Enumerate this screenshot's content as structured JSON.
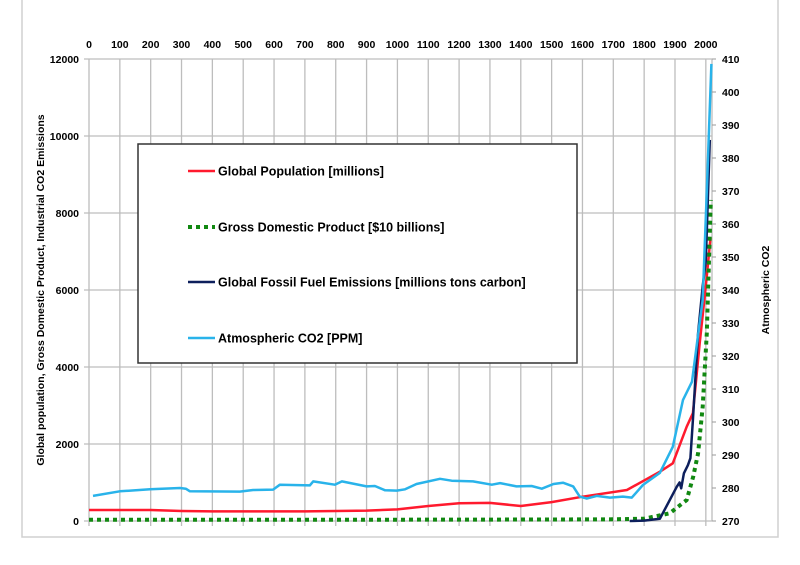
{
  "chart_data": {
    "type": "line",
    "title": "",
    "x_axis": {
      "position": "top",
      "range": [
        0,
        2020
      ],
      "ticks": [
        0,
        100,
        200,
        300,
        400,
        500,
        600,
        700,
        800,
        900,
        1000,
        1100,
        1200,
        1300,
        1400,
        1500,
        1600,
        1700,
        1800,
        1900,
        2000
      ]
    },
    "y_left": {
      "label": "Global population, Gross Domestic Product,  Industrial  CO2 Emissions",
      "range": [
        0,
        12000
      ],
      "ticks": [
        0,
        2000,
        4000,
        6000,
        8000,
        10000,
        12000
      ]
    },
    "y_right": {
      "label": "Atmospheric CO2",
      "range": [
        270,
        410
      ],
      "ticks": [
        270,
        280,
        290,
        300,
        310,
        320,
        330,
        340,
        350,
        360,
        370,
        380,
        390,
        400,
        410
      ]
    },
    "grid": true,
    "legend_placement": "center-left",
    "series": [
      {
        "name": "Global Population [millions]",
        "axis": "left",
        "color": "#ff1a2e",
        "style": "solid",
        "x": [
          0,
          200,
          300,
          400,
          700,
          900,
          1000,
          1100,
          1200,
          1300,
          1400,
          1500,
          1600,
          1744,
          1851,
          1893,
          1938,
          1958,
          1980,
          2000,
          2015
        ],
        "y": [
          285,
          285,
          260,
          250,
          250,
          270,
          300,
          390,
          460,
          470,
          390,
          490,
          630,
          805,
          1280,
          1500,
          2450,
          2800,
          4620,
          6100,
          7350
        ]
      },
      {
        "name": "Gross Domestic Product [$10 billions]",
        "axis": "left",
        "color": "#118811",
        "style": "dotted",
        "x": [
          0,
          1000,
          1500,
          1700,
          1800,
          1883,
          1938,
          1959,
          1975,
          1990,
          2003,
          2016
        ],
        "y": [
          30,
          35,
          40,
          45,
          60,
          200,
          545,
          1150,
          1760,
          2970,
          4880,
          8340
        ]
      },
      {
        "name": "Global Fossil Fuel Emissions [millions tons carbon]",
        "axis": "left",
        "color": "#0d1f5c",
        "style": "solid",
        "x": [
          1753,
          1800,
          1851,
          1906,
          1915,
          1920,
          1929,
          1942,
          1950,
          1958,
          1975,
          1990,
          2000,
          2013
        ],
        "y": [
          0,
          10,
          60,
          890,
          1000,
          850,
          1240,
          1450,
          1630,
          2620,
          4880,
          6100,
          6750,
          9900
        ]
      },
      {
        "name": "Atmospheric CO2 [PPM]",
        "axis": "right",
        "color": "#29b3ea",
        "style": "solid",
        "x": [
          13,
          100,
          198,
          295,
          314,
          327,
          489,
          532,
          597,
          619,
          716,
          727,
          797,
          820,
          900,
          927,
          960,
          998,
          1025,
          1062,
          1138,
          1176,
          1245,
          1306,
          1333,
          1386,
          1435,
          1468,
          1506,
          1537,
          1570,
          1591,
          1614,
          1646,
          1689,
          1731,
          1760,
          1796,
          1851,
          1893,
          1926,
          1955,
          1974,
          1990,
          2003,
          2018
        ],
        "y": [
          277.6,
          279.0,
          279.6,
          280.0,
          279.8,
          279.0,
          278.9,
          279.4,
          279.5,
          281.0,
          280.8,
          282.0,
          281.0,
          282.0,
          280.5,
          280.6,
          279.3,
          279.2,
          279.6,
          281.2,
          282.8,
          282.2,
          282.0,
          281.0,
          281.5,
          280.5,
          280.6,
          279.8,
          281.2,
          281.6,
          280.5,
          277.4,
          276.8,
          277.6,
          277.1,
          277.4,
          277.1,
          280.9,
          284.6,
          292.5,
          306.7,
          312.2,
          325.8,
          337,
          370,
          408.5
        ]
      }
    ]
  }
}
